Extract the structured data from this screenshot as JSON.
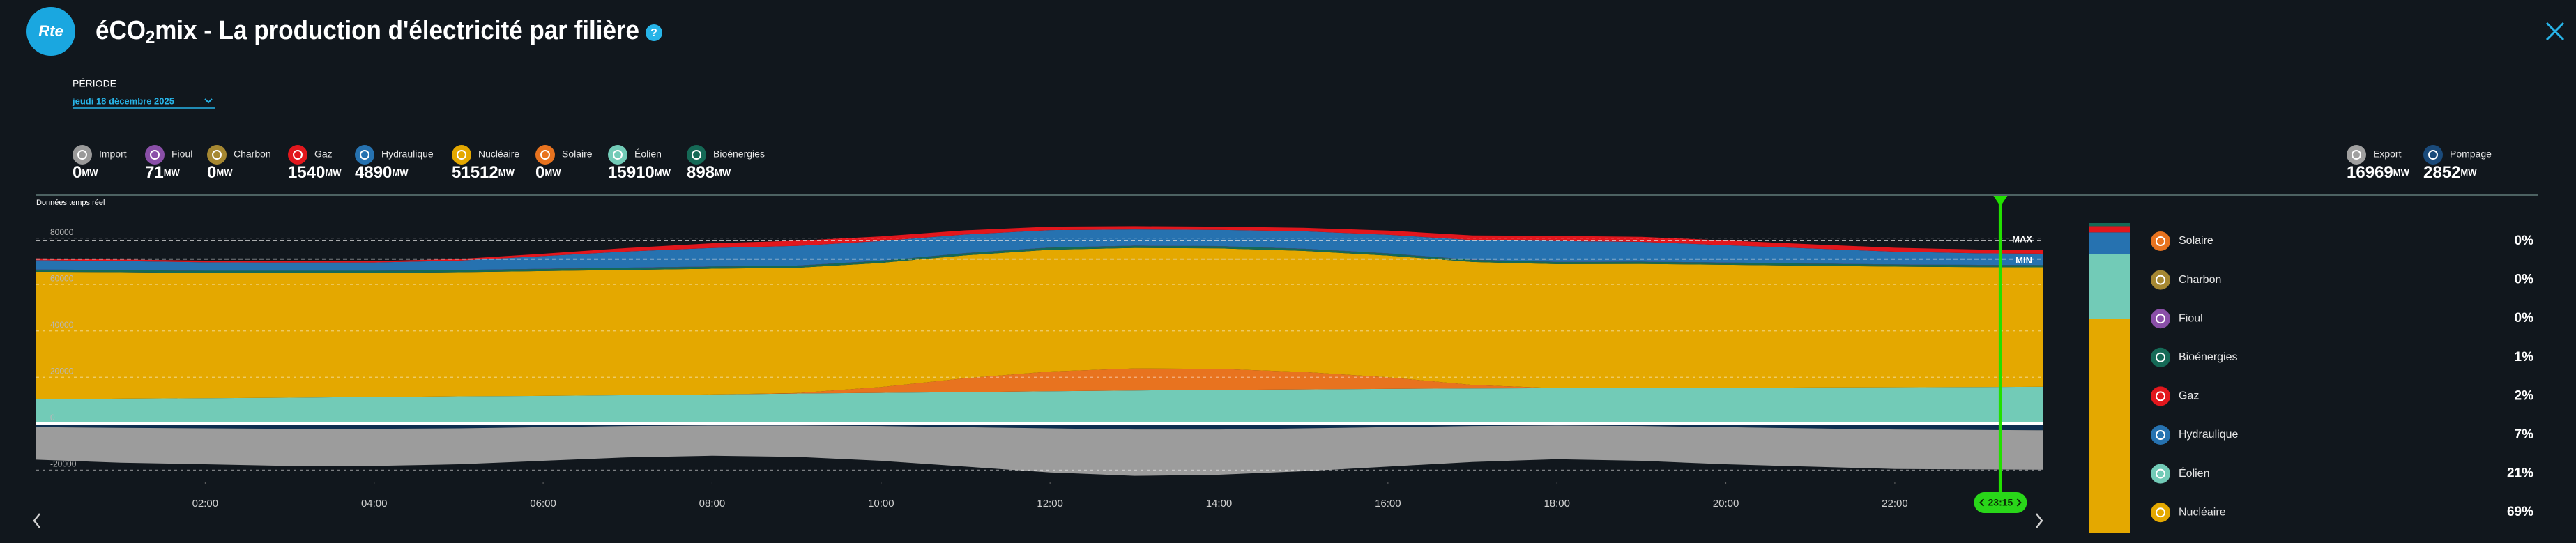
{
  "header": {
    "logo": "Rte",
    "title": [
      "éCO",
      "2",
      "mix - La production d'électricité par filière"
    ],
    "help": "?"
  },
  "period": {
    "label": "PÉRIODE",
    "value": "jeudi 18 décembre 2025"
  },
  "production": {
    "unit": "MW",
    "left": [
      {
        "name": "Import",
        "value": 0,
        "color": "#9a9a9a"
      },
      {
        "name": "Fioul",
        "value": 71,
        "color": "#8a4fa8"
      },
      {
        "name": "Charbon",
        "value": 0,
        "color": "#a68832"
      },
      {
        "name": "Gaz",
        "value": 1540,
        "color": "#e2171d"
      },
      {
        "name": "Hydraulique",
        "value": 4890,
        "color": "#2672b0"
      },
      {
        "name": "Nucléaire",
        "value": 51512,
        "color": "#e4a800"
      },
      {
        "name": "Solaire",
        "value": 0,
        "color": "#e8731f"
      },
      {
        "name": "Éolien",
        "value": 15910,
        "color": "#72cbb7"
      },
      {
        "name": "Bioénergies",
        "value": 898,
        "color": "#156956"
      }
    ],
    "right": [
      {
        "name": "Export",
        "value": 16969,
        "color": "#a0a0a0"
      },
      {
        "name": "Pompage",
        "value": 2852,
        "color": "#1a4a7a"
      }
    ]
  },
  "chart_data": {
    "type": "area",
    "subtitle": "Données temps réel",
    "x": [
      0,
      1,
      2,
      3,
      4,
      5,
      6,
      7,
      8,
      9,
      10,
      11,
      12,
      13,
      14,
      15,
      16,
      17,
      18,
      19,
      20,
      21,
      22,
      23,
      23.75
    ],
    "xlim": [
      0,
      23.75
    ],
    "xticks": [
      {
        "value": 2,
        "label": "02:00"
      },
      {
        "value": 4,
        "label": "04:00"
      },
      {
        "value": 6,
        "label": "06:00"
      },
      {
        "value": 8,
        "label": "08:00"
      },
      {
        "value": 10,
        "label": "10:00"
      },
      {
        "value": 12,
        "label": "12:00"
      },
      {
        "value": 14,
        "label": "14:00"
      },
      {
        "value": 16,
        "label": "16:00"
      },
      {
        "value": 18,
        "label": "18:00"
      },
      {
        "value": 20,
        "label": "20:00"
      },
      {
        "value": 22,
        "label": "22:00"
      }
    ],
    "ylim": [
      -25000,
      85000
    ],
    "yticks": [
      80000,
      60000,
      40000,
      20000,
      0,
      -20000
    ],
    "grid": true,
    "series": [
      {
        "name": "Éolien",
        "color": "#72cbb7",
        "values": [
          10500,
          10800,
          11000,
          11200,
          11500,
          11800,
          12000,
          12300,
          12600,
          13000,
          13300,
          13600,
          14000,
          14300,
          14600,
          14800,
          15000,
          15200,
          15300,
          15400,
          15500,
          15600,
          15700,
          15800,
          15910
        ]
      },
      {
        "name": "Solaire",
        "color": "#e8731f",
        "values": [
          0,
          0,
          0,
          0,
          0,
          0,
          0,
          0,
          0,
          200,
          2500,
          6000,
          8500,
          9500,
          9000,
          7500,
          5000,
          1500,
          0,
          0,
          0,
          0,
          0,
          0,
          0
        ]
      },
      {
        "name": "Nucléaire",
        "color": "#e4a800",
        "values": [
          55000,
          54500,
          54000,
          53800,
          53500,
          53500,
          53800,
          54000,
          54200,
          54000,
          53500,
          53000,
          52500,
          52000,
          52000,
          52200,
          52500,
          53000,
          53500,
          53500,
          53000,
          52500,
          52000,
          51700,
          51512
        ]
      },
      {
        "name": "Bioénergies",
        "color": "#156956",
        "values": [
          900,
          900,
          900,
          900,
          900,
          900,
          900,
          900,
          900,
          900,
          900,
          900,
          900,
          900,
          900,
          900,
          900,
          900,
          900,
          900,
          900,
          900,
          900,
          900,
          898
        ]
      },
      {
        "name": "Fioul",
        "color": "#8a4fa8",
        "values": [
          71,
          71,
          71,
          71,
          71,
          71,
          71,
          71,
          71,
          71,
          71,
          71,
          71,
          71,
          71,
          71,
          71,
          71,
          71,
          71,
          71,
          71,
          71,
          71,
          71
        ]
      },
      {
        "name": "Hydraulique",
        "color": "#2672b0",
        "values": [
          4000,
          3800,
          3600,
          3500,
          3500,
          4000,
          5500,
          7000,
          8000,
          8500,
          8500,
          8000,
          7500,
          7000,
          7000,
          7500,
          8000,
          8500,
          9000,
          8500,
          7500,
          6500,
          5500,
          5000,
          4890
        ]
      },
      {
        "name": "Gaz",
        "color": "#e2171d",
        "values": [
          800,
          700,
          700,
          600,
          600,
          700,
          1000,
          1500,
          2000,
          2200,
          2000,
          1800,
          1500,
          1400,
          1400,
          1500,
          1800,
          2000,
          2200,
          2200,
          2000,
          1800,
          1700,
          1600,
          1540
        ]
      },
      {
        "name": "Pompage",
        "color": "#0e2f50",
        "values": [
          -1500,
          -1800,
          -2000,
          -2200,
          -2200,
          -2000,
          -1500,
          -1000,
          -800,
          -800,
          -1000,
          -1500,
          -2000,
          -2500,
          -2500,
          -2000,
          -1500,
          -1000,
          -800,
          -1000,
          -1500,
          -2000,
          -2500,
          -2700,
          -2852
        ]
      },
      {
        "name": "Export",
        "color": "#9c9c9c",
        "values": [
          -14000,
          -15000,
          -15500,
          -16000,
          -16000,
          -15500,
          -14500,
          -13500,
          -13000,
          -13500,
          -15000,
          -17000,
          -19000,
          -20000,
          -19500,
          -18500,
          -17000,
          -15500,
          -14500,
          -15000,
          -16000,
          -16500,
          -17000,
          -17000,
          -16969
        ]
      }
    ],
    "reference_lines": [
      {
        "label": "MAX",
        "value": 79000
      },
      {
        "label": "MIN",
        "value": 71000
      }
    ],
    "cursor": {
      "value": 23.25,
      "label": "23:15"
    }
  },
  "breakdown": {
    "items": [
      {
        "name": "Solaire",
        "color": "#e8731f",
        "value": 0,
        "value_label": "0%"
      },
      {
        "name": "Charbon",
        "color": "#a68832",
        "value": 0,
        "value_label": "0%"
      },
      {
        "name": "Fioul",
        "color": "#8a4fa8",
        "value": 0,
        "value_label": "0%"
      },
      {
        "name": "Bioénergies",
        "color": "#156956",
        "value": 1,
        "value_label": "1%"
      },
      {
        "name": "Gaz",
        "color": "#e2171d",
        "value": 2,
        "value_label": "2%"
      },
      {
        "name": "Hydraulique",
        "color": "#2672b0",
        "value": 7,
        "value_label": "7%"
      },
      {
        "name": "Éolien",
        "color": "#72cbb7",
        "value": 21,
        "value_label": "21%"
      },
      {
        "name": "Nucléaire",
        "color": "#e4a800",
        "value": 69,
        "value_label": "69%"
      }
    ]
  }
}
